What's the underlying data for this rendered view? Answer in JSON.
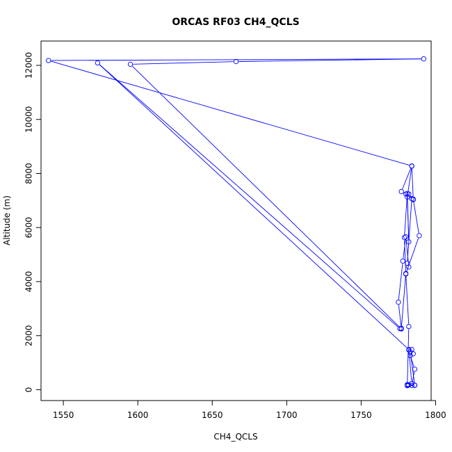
{
  "chart_data": {
    "type": "line",
    "title": "ORCAS RF03 CH4_QCLS",
    "xlabel": "CH4_QCLS",
    "ylabel": "Altitude (m)",
    "xlim": [
      1535,
      1797
    ],
    "ylim": [
      -400,
      12900
    ],
    "xticks": [
      1550,
      1600,
      1650,
      1700,
      1750,
      1800
    ],
    "yticks": [
      0,
      2000,
      4000,
      6000,
      8000,
      10000,
      12000
    ],
    "grid": false,
    "marker": "open-circle",
    "line_color": "#0000ff",
    "series": [
      {
        "x": [
          1781,
          1782,
          1784,
          1786,
          1783,
          1785,
          1782,
          1784,
          1783,
          1786,
          1781,
          1782,
          1780,
          1777,
          1775,
          1778,
          1780,
          1782,
          1781,
          1784,
          1782,
          1785,
          1789,
          1780,
          1779,
          1781,
          1782,
          1781,
          1784,
          1785,
          1780,
          1777,
          1784,
          1540,
          1792,
          1666,
          1595,
          1777,
          1776,
          1573,
          1782,
          1784,
          1786,
          1781
        ],
        "y": [
          150,
          180,
          160,
          760,
          1260,
          1330,
          1470,
          1490,
          1400,
          170,
          190,
          2340,
          4300,
          2270,
          3240,
          4760,
          5660,
          4540,
          4680,
          7070,
          7240,
          7030,
          5700,
          4280,
          5630,
          7260,
          5470,
          7130,
          8270,
          7050,
          7240,
          7330,
          8280,
          12180,
          12240,
          12140,
          12040,
          2250,
          2260,
          12090,
          1490,
          230,
          160,
          170
        ]
      }
    ]
  }
}
